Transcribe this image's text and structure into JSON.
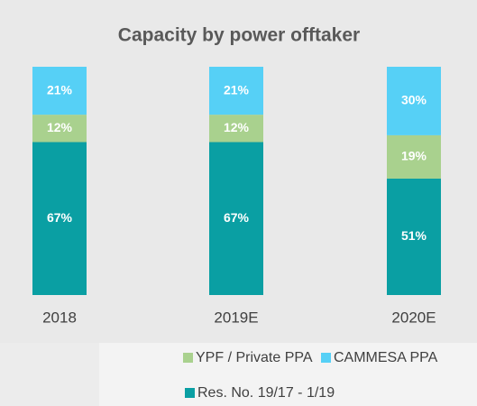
{
  "chart_data": {
    "type": "stacked_bar",
    "title": "Capacity by power offtaker",
    "categories": [
      "2018",
      "2019E",
      "2020E"
    ],
    "series": [
      {
        "name": "Res. No. 19/17 - 1/19",
        "color": "#0a9fa3",
        "values": [
          67,
          67,
          51
        ],
        "value_labels": [
          "67%",
          "67%",
          "51%"
        ]
      },
      {
        "name": "YPF / Private  PPA",
        "color": "#a9d18e",
        "values": [
          12,
          12,
          19
        ],
        "value_labels": [
          "12%",
          "12%",
          "19%"
        ]
      },
      {
        "name": "CAMMESA PPA",
        "color": "#56d0f6",
        "values": [
          21,
          21,
          30
        ],
        "value_labels": [
          "21%",
          "21%",
          "30%"
        ]
      }
    ]
  }
}
